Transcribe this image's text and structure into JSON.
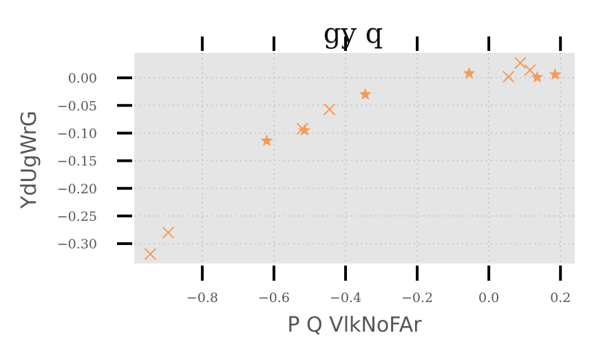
{
  "chart_data": {
    "type": "scatter",
    "title": "gy q",
    "xlabel": "P Q VlkNoFAr",
    "ylabel": "YdUgWrG",
    "xlim": [
      -0.99,
      0.24
    ],
    "ylim": [
      -0.336,
      0.045
    ],
    "grid": true,
    "background": "#e5e5e5",
    "marker_color": "#f79a57",
    "x_ticks": [
      -0.8,
      -0.6,
      -0.4,
      -0.2,
      0.0,
      0.2
    ],
    "x_tick_labels": [
      "−0.8",
      "−0.6",
      "−0.4",
      "−0.2",
      "0.0",
      "0.2"
    ],
    "y_ticks": [
      0.0,
      -0.05,
      -0.1,
      -0.15,
      -0.2,
      -0.25,
      -0.3
    ],
    "y_tick_labels": [
      "0.00",
      "−0.05",
      "−0.10",
      "−0.15",
      "−0.20",
      "−0.25",
      "−0.30"
    ],
    "series": [
      {
        "marker": "star",
        "x": [
          -0.62,
          -0.515,
          -0.345,
          -0.055,
          0.135,
          0.185
        ],
        "y": [
          -0.114,
          -0.095,
          -0.03,
          0.008,
          0.001,
          0.006
        ]
      },
      {
        "marker": "x",
        "x": [
          -0.945,
          -0.895,
          -0.52,
          -0.445,
          0.055,
          0.088,
          0.115
        ],
        "y": [
          -0.319,
          -0.28,
          -0.092,
          -0.057,
          0.002,
          0.027,
          0.014
        ]
      }
    ]
  }
}
